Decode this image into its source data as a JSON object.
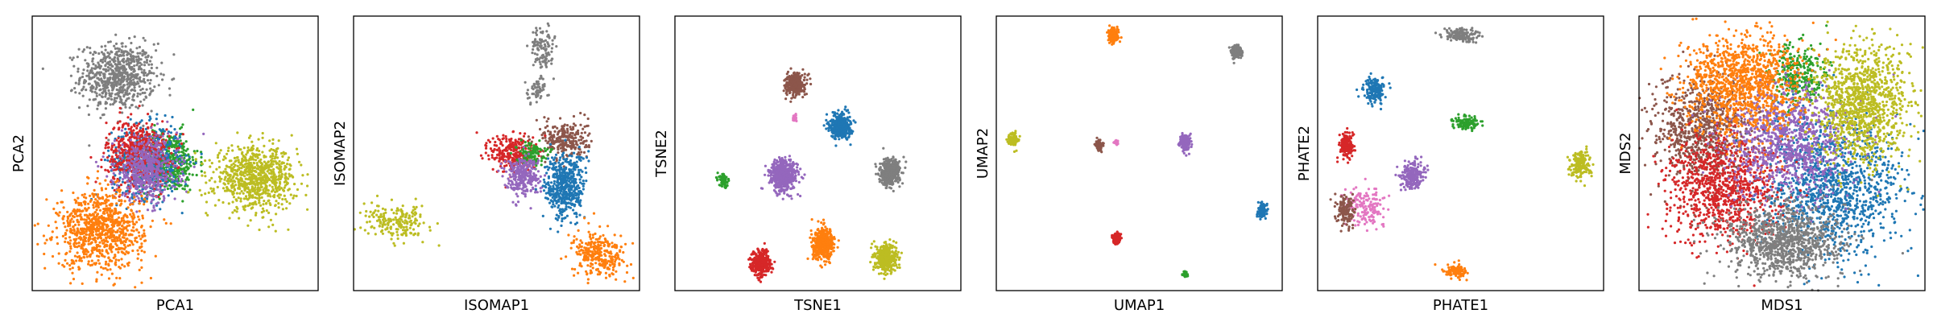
{
  "palette": {
    "tab-blue": "#1f77b4",
    "tab-orange": "#ff7f0e",
    "tab-green": "#2ca02c",
    "tab-red": "#d62728",
    "tab-purple": "#9467bd",
    "tab-brown": "#8c564b",
    "tab-pink": "#e377c2",
    "tab-gray": "#7f7f7f",
    "tab-olive": "#bcbd22"
  },
  "chart_data": [
    {
      "type": "scatter",
      "xlabel": "PCA1",
      "ylabel": "PCA2",
      "xlim": [
        0,
        1
      ],
      "ylim": [
        0,
        1
      ],
      "ticks": false,
      "grid": false,
      "clusters": [
        {
          "color": "tab-gray",
          "cx": 0.3,
          "cy": 0.78,
          "sx": 0.065,
          "sy": 0.06,
          "n": 700
        },
        {
          "color": "tab-green",
          "cx": 0.48,
          "cy": 0.47,
          "sx": 0.05,
          "sy": 0.055,
          "n": 450
        },
        {
          "color": "tab-blue",
          "cx": 0.4,
          "cy": 0.47,
          "sx": 0.06,
          "sy": 0.065,
          "n": 550
        },
        {
          "color": "tab-red",
          "cx": 0.37,
          "cy": 0.5,
          "sx": 0.055,
          "sy": 0.06,
          "n": 550
        },
        {
          "color": "tab-purple",
          "cx": 0.4,
          "cy": 0.44,
          "sx": 0.055,
          "sy": 0.06,
          "n": 500
        },
        {
          "color": "tab-olive",
          "cx": 0.78,
          "cy": 0.41,
          "sx": 0.07,
          "sy": 0.055,
          "n": 800
        },
        {
          "color": "tab-orange",
          "cx": 0.24,
          "cy": 0.22,
          "sx": 0.075,
          "sy": 0.07,
          "n": 900
        }
      ]
    },
    {
      "type": "scatter",
      "xlabel": "ISOMAP1",
      "ylabel": "ISOMAP2",
      "xlim": [
        0,
        1
      ],
      "ylim": [
        0,
        1
      ],
      "ticks": false,
      "grid": false,
      "clusters": [
        {
          "color": "tab-gray",
          "cx": 0.66,
          "cy": 0.88,
          "sx": 0.02,
          "sy": 0.04,
          "n": 110
        },
        {
          "color": "tab-gray",
          "cx": 0.64,
          "cy": 0.73,
          "sx": 0.02,
          "sy": 0.025,
          "n": 60
        },
        {
          "color": "tab-brown",
          "cx": 0.74,
          "cy": 0.55,
          "sx": 0.04,
          "sy": 0.035,
          "n": 260
        },
        {
          "color": "tab-red",
          "cx": 0.56,
          "cy": 0.5,
          "sx": 0.04,
          "sy": 0.035,
          "n": 300
        },
        {
          "color": "tab-green",
          "cx": 0.62,
          "cy": 0.5,
          "sx": 0.025,
          "sy": 0.02,
          "n": 110
        },
        {
          "color": "tab-purple",
          "cx": 0.59,
          "cy": 0.42,
          "sx": 0.03,
          "sy": 0.035,
          "n": 300
        },
        {
          "color": "tab-blue",
          "cx": 0.74,
          "cy": 0.38,
          "sx": 0.035,
          "sy": 0.06,
          "n": 500
        },
        {
          "color": "tab-orange",
          "cx": 0.86,
          "cy": 0.13,
          "sx": 0.045,
          "sy": 0.04,
          "n": 300
        },
        {
          "color": "tab-olive",
          "cx": 0.15,
          "cy": 0.25,
          "sx": 0.055,
          "sy": 0.03,
          "n": 200
        }
      ]
    },
    {
      "type": "scatter",
      "xlabel": "TSNE1",
      "ylabel": "TSNE2",
      "xlim": [
        0,
        1
      ],
      "ylim": [
        0,
        1
      ],
      "ticks": false,
      "grid": false,
      "clusters": [
        {
          "color": "tab-brown",
          "cx": 0.42,
          "cy": 0.75,
          "sx": 0.017,
          "sy": 0.02,
          "n": 320
        },
        {
          "color": "tab-pink",
          "cx": 0.42,
          "cy": 0.63,
          "sx": 0.004,
          "sy": 0.006,
          "n": 20
        },
        {
          "color": "tab-blue",
          "cx": 0.58,
          "cy": 0.6,
          "sx": 0.018,
          "sy": 0.022,
          "n": 420
        },
        {
          "color": "tab-purple",
          "cx": 0.38,
          "cy": 0.42,
          "sx": 0.024,
          "sy": 0.03,
          "n": 520
        },
        {
          "color": "tab-gray",
          "cx": 0.75,
          "cy": 0.43,
          "sx": 0.018,
          "sy": 0.023,
          "n": 400
        },
        {
          "color": "tab-green",
          "cx": 0.17,
          "cy": 0.4,
          "sx": 0.008,
          "sy": 0.012,
          "n": 90
        },
        {
          "color": "tab-orange",
          "cx": 0.52,
          "cy": 0.17,
          "sx": 0.019,
          "sy": 0.028,
          "n": 440
        },
        {
          "color": "tab-red",
          "cx": 0.3,
          "cy": 0.1,
          "sx": 0.017,
          "sy": 0.022,
          "n": 360
        },
        {
          "color": "tab-olive",
          "cx": 0.74,
          "cy": 0.12,
          "sx": 0.018,
          "sy": 0.025,
          "n": 400
        }
      ]
    },
    {
      "type": "scatter",
      "xlabel": "UMAP1",
      "ylabel": "UMAP2",
      "xlim": [
        0,
        1
      ],
      "ylim": [
        0,
        1
      ],
      "ticks": false,
      "grid": false,
      "clusters": [
        {
          "color": "tab-orange",
          "cx": 0.41,
          "cy": 0.93,
          "sx": 0.009,
          "sy": 0.012,
          "n": 160
        },
        {
          "color": "tab-gray",
          "cx": 0.84,
          "cy": 0.87,
          "sx": 0.008,
          "sy": 0.011,
          "n": 150
        },
        {
          "color": "tab-olive",
          "cx": 0.06,
          "cy": 0.55,
          "sx": 0.008,
          "sy": 0.011,
          "n": 140
        },
        {
          "color": "tab-brown",
          "cx": 0.36,
          "cy": 0.53,
          "sx": 0.006,
          "sy": 0.009,
          "n": 100
        },
        {
          "color": "tab-pink",
          "cx": 0.42,
          "cy": 0.54,
          "sx": 0.004,
          "sy": 0.004,
          "n": 25
        },
        {
          "color": "tab-purple",
          "cx": 0.66,
          "cy": 0.54,
          "sx": 0.009,
          "sy": 0.014,
          "n": 180
        },
        {
          "color": "tab-blue",
          "cx": 0.93,
          "cy": 0.29,
          "sx": 0.007,
          "sy": 0.011,
          "n": 140
        },
        {
          "color": "tab-red",
          "cx": 0.42,
          "cy": 0.19,
          "sx": 0.007,
          "sy": 0.01,
          "n": 130
        },
        {
          "color": "tab-green",
          "cx": 0.66,
          "cy": 0.06,
          "sx": 0.004,
          "sy": 0.005,
          "n": 40
        }
      ]
    },
    {
      "type": "scatter",
      "xlabel": "PHATE1",
      "ylabel": "PHATE2",
      "xlim": [
        0,
        1
      ],
      "ylim": [
        0,
        1
      ],
      "ticks": false,
      "grid": false,
      "clusters": [
        {
          "color": "tab-gray",
          "cx": 0.5,
          "cy": 0.93,
          "sx": 0.03,
          "sy": 0.012,
          "n": 160
        },
        {
          "color": "tab-blue",
          "cx": 0.2,
          "cy": 0.73,
          "sx": 0.018,
          "sy": 0.022,
          "n": 170
        },
        {
          "color": "tab-green",
          "cx": 0.52,
          "cy": 0.61,
          "sx": 0.022,
          "sy": 0.012,
          "n": 120
        },
        {
          "color": "tab-red",
          "cx": 0.1,
          "cy": 0.53,
          "sx": 0.012,
          "sy": 0.022,
          "n": 170
        },
        {
          "color": "tab-purple",
          "cx": 0.33,
          "cy": 0.42,
          "sx": 0.02,
          "sy": 0.025,
          "n": 220
        },
        {
          "color": "tab-pink",
          "cx": 0.17,
          "cy": 0.31,
          "sx": 0.035,
          "sy": 0.035,
          "n": 160
        },
        {
          "color": "tab-brown",
          "cx": 0.1,
          "cy": 0.29,
          "sx": 0.015,
          "sy": 0.03,
          "n": 140
        },
        {
          "color": "tab-olive",
          "cx": 0.92,
          "cy": 0.46,
          "sx": 0.018,
          "sy": 0.025,
          "n": 170
        },
        {
          "color": "tab-orange",
          "cx": 0.48,
          "cy": 0.07,
          "sx": 0.02,
          "sy": 0.012,
          "n": 130
        }
      ]
    },
    {
      "type": "scatter",
      "xlabel": "MDS1",
      "ylabel": "MDS2",
      "xlim": [
        0,
        1
      ],
      "ylim": [
        0,
        1
      ],
      "ticks": false,
      "grid": false,
      "clusters": [
        {
          "color": "tab-green",
          "cx": 0.55,
          "cy": 0.78,
          "sx": 0.05,
          "sy": 0.06,
          "n": 300
        },
        {
          "color": "tab-brown",
          "cx": 0.22,
          "cy": 0.58,
          "sx": 0.09,
          "sy": 0.1,
          "n": 800
        },
        {
          "color": "tab-blue",
          "cx": 0.68,
          "cy": 0.38,
          "sx": 0.12,
          "sy": 0.12,
          "n": 1200
        },
        {
          "color": "tab-red",
          "cx": 0.3,
          "cy": 0.38,
          "sx": 0.1,
          "sy": 0.1,
          "n": 1000
        },
        {
          "color": "tab-purple",
          "cx": 0.52,
          "cy": 0.55,
          "sx": 0.11,
          "sy": 0.1,
          "n": 1000
        },
        {
          "color": "tab-gray",
          "cx": 0.5,
          "cy": 0.18,
          "sx": 0.1,
          "sy": 0.07,
          "n": 1000
        },
        {
          "color": "tab-orange",
          "cx": 0.36,
          "cy": 0.75,
          "sx": 0.1,
          "sy": 0.09,
          "n": 1100
        },
        {
          "color": "tab-olive",
          "cx": 0.78,
          "cy": 0.68,
          "sx": 0.08,
          "sy": 0.11,
          "n": 1100
        }
      ]
    }
  ]
}
